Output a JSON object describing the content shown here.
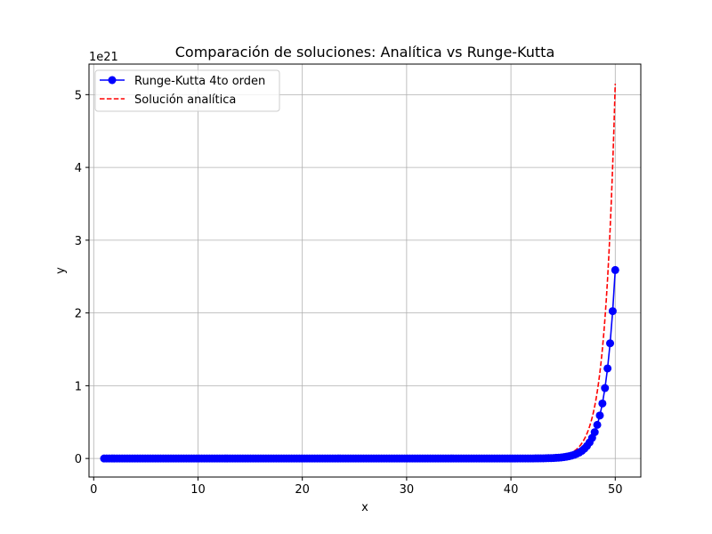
{
  "chart_data": {
    "type": "line",
    "title": "Comparación de soluciones: Analítica vs Runge-Kutta",
    "xlabel": "x",
    "ylabel": "y",
    "y_offset_text": "1e21",
    "y_scale": 1e+21,
    "xlim": [
      -0.45,
      52.45
    ],
    "ylim": [
      -0.255,
      5.42
    ],
    "xticks": [
      0,
      10,
      20,
      30,
      40,
      50
    ],
    "yticks": [
      0,
      1,
      2,
      3,
      4,
      5
    ],
    "grid": true,
    "legend_position": "upper-left",
    "series": [
      {
        "name": "Runge-Kutta 4to orden",
        "color": "#0000ff",
        "style": "solid",
        "marker": "circle",
        "x_start": 1,
        "x_end": 50,
        "n_points": 200,
        "end_value": 2.59
      },
      {
        "name": "Solución analítica",
        "color": "#ff0000",
        "style": "dashed",
        "marker": "none",
        "x_start": 1,
        "x_end": 50,
        "n_points": 400,
        "end_value": 5.15
      }
    ]
  }
}
